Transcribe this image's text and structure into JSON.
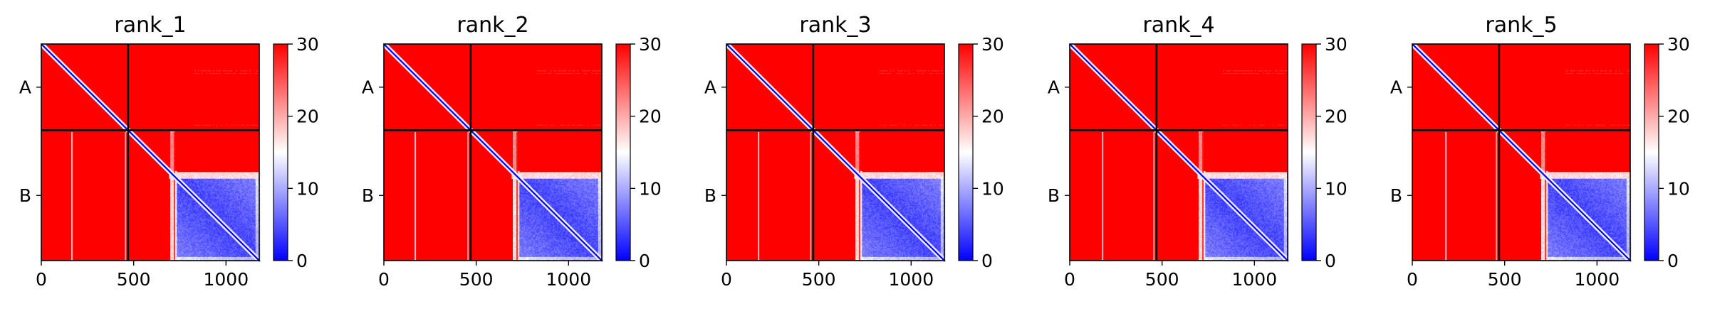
{
  "chart_data": [
    {
      "type": "heatmap",
      "title": "rank_1",
      "variant": 0,
      "x_ticks": [
        0,
        500,
        1000
      ],
      "y_ticks": [
        "A",
        "B"
      ],
      "x_range": [
        0,
        1180
      ],
      "chains": [
        {
          "name": "A",
          "start": 0,
          "end": 470
        },
        {
          "name": "B",
          "start": 470,
          "end": 1180
        }
      ],
      "colorbar": {
        "min": 0,
        "max": 30,
        "ticks": [
          0,
          10,
          20,
          30
        ],
        "colors": [
          "#0000ff",
          "#ffffff",
          "#ff0000"
        ]
      }
    },
    {
      "type": "heatmap",
      "title": "rank_2",
      "variant": 1,
      "x_ticks": [
        0,
        500,
        1000
      ],
      "y_ticks": [
        "A",
        "B"
      ],
      "x_range": [
        0,
        1180
      ],
      "chains": [
        {
          "name": "A",
          "start": 0,
          "end": 470
        },
        {
          "name": "B",
          "start": 470,
          "end": 1180
        }
      ],
      "colorbar": {
        "min": 0,
        "max": 30,
        "ticks": [
          0,
          10,
          20,
          30
        ],
        "colors": [
          "#0000ff",
          "#ffffff",
          "#ff0000"
        ]
      }
    },
    {
      "type": "heatmap",
      "title": "rank_3",
      "variant": 2,
      "x_ticks": [
        0,
        500,
        1000
      ],
      "y_ticks": [
        "A",
        "B"
      ],
      "x_range": [
        0,
        1180
      ],
      "chains": [
        {
          "name": "A",
          "start": 0,
          "end": 470
        },
        {
          "name": "B",
          "start": 470,
          "end": 1180
        }
      ],
      "colorbar": {
        "min": 0,
        "max": 30,
        "ticks": [
          0,
          10,
          20,
          30
        ],
        "colors": [
          "#0000ff",
          "#ffffff",
          "#ff0000"
        ]
      }
    },
    {
      "type": "heatmap",
      "title": "rank_4",
      "variant": 3,
      "x_ticks": [
        0,
        500,
        1000
      ],
      "y_ticks": [
        "A",
        "B"
      ],
      "x_range": [
        0,
        1180
      ],
      "chains": [
        {
          "name": "A",
          "start": 0,
          "end": 470
        },
        {
          "name": "B",
          "start": 470,
          "end": 1180
        }
      ],
      "colorbar": {
        "min": 0,
        "max": 30,
        "ticks": [
          0,
          10,
          20,
          30
        ],
        "colors": [
          "#0000ff",
          "#ffffff",
          "#ff0000"
        ]
      }
    },
    {
      "type": "heatmap",
      "title": "rank_5",
      "variant": 4,
      "x_ticks": [
        0,
        500,
        1000
      ],
      "y_ticks": [
        "A",
        "B"
      ],
      "x_range": [
        0,
        1180
      ],
      "chains": [
        {
          "name": "A",
          "start": 0,
          "end": 470
        },
        {
          "name": "B",
          "start": 470,
          "end": 1180
        }
      ],
      "colorbar": {
        "min": 0,
        "max": 30,
        "ticks": [
          0,
          10,
          20,
          30
        ],
        "colors": [
          "#0000ff",
          "#ffffff",
          "#ff0000"
        ]
      }
    }
  ]
}
